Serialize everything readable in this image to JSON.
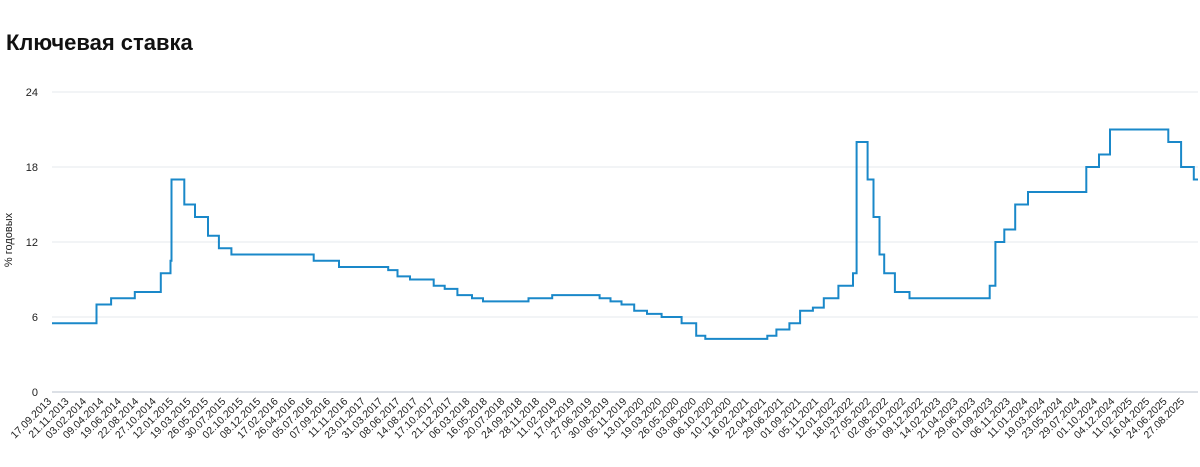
{
  "title": "Ключевая ставка",
  "chart_data": {
    "type": "line",
    "title": "Ключевая ставка",
    "xlabel": "",
    "ylabel": "% годовых",
    "ylim": [
      0,
      24
    ],
    "yticks": [
      "0",
      "6",
      "12",
      "18",
      "24"
    ],
    "grid": true,
    "line_color": "#1a88c9",
    "xticks": [
      "17.09.2013",
      "21.11.2013",
      "03.02.2014",
      "09.04.2014",
      "19.06.2014",
      "22.08.2014",
      "27.10.2014",
      "12.01.2015",
      "19.03.2015",
      "26.05.2015",
      "30.07.2015",
      "02.10.2015",
      "08.12.2015",
      "17.02.2016",
      "26.04.2016",
      "05.07.2016",
      "07.09.2016",
      "11.11.2016",
      "23.01.2017",
      "31.03.2017",
      "08.06.2017",
      "14.08.2017",
      "17.10.2017",
      "21.12.2017",
      "06.03.2018",
      "16.05.2018",
      "20.07.2018",
      "24.09.2018",
      "28.11.2018",
      "11.02.2019",
      "17.04.2019",
      "27.06.2019",
      "30.08.2019",
      "05.11.2019",
      "13.01.2020",
      "19.03.2020",
      "26.05.2020",
      "03.08.2020",
      "06.10.2020",
      "10.12.2020",
      "16.02.2021",
      "22.04.2021",
      "29.06.2021",
      "01.09.2021",
      "05.11.2021",
      "12.01.2022",
      "18.03.2022",
      "27.05.2022",
      "02.08.2022",
      "05.10.2022",
      "09.12.2022",
      "14.02.2023",
      "21.04.2023",
      "29.06.2023",
      "01.09.2023",
      "06.11.2023",
      "11.01.2024",
      "19.03.2024",
      "23.05.2024",
      "29.07.2024",
      "01.10.2024",
      "04.12.2024",
      "11.02.2025",
      "16.04.2025",
      "24.06.2025",
      "27.08.2025"
    ],
    "series": [
      {
        "x": [
          "2013-09-13",
          "2014-03-03",
          "2014-04-28",
          "2014-07-28",
          "2014-11-05",
          "2014-12-12",
          "2014-12-16",
          "2015-02-03",
          "2015-03-16",
          "2015-05-05",
          "2015-06-16",
          "2015-08-03",
          "2016-06-14",
          "2016-09-19",
          "2017-03-27",
          "2017-05-02",
          "2017-06-19",
          "2017-09-18",
          "2017-10-30",
          "2017-12-18",
          "2018-02-12",
          "2018-03-26",
          "2018-09-17",
          "2018-12-17",
          "2019-06-17",
          "2019-07-29",
          "2019-09-09",
          "2019-10-28",
          "2019-12-16",
          "2020-02-10",
          "2020-04-27",
          "2020-06-22",
          "2020-07-27",
          "2021-03-22",
          "2021-04-26",
          "2021-06-15",
          "2021-07-26",
          "2021-09-13",
          "2021-10-25",
          "2021-12-20",
          "2022-02-14",
          "2022-02-28",
          "2022-04-11",
          "2022-05-04",
          "2022-05-27",
          "2022-06-14",
          "2022-07-25",
          "2022-09-19",
          "2023-07-24",
          "2023-08-15",
          "2023-09-18",
          "2023-10-30",
          "2023-12-18",
          "2024-07-29",
          "2024-09-16",
          "2024-10-28",
          "2025-06-09",
          "2025-07-28",
          "2025-09-15",
          "2025-10-01"
        ],
        "values": [
          5.5,
          7,
          7.5,
          8,
          9.5,
          10.5,
          17,
          15,
          14,
          12.5,
          11.5,
          11,
          10.5,
          10,
          9.75,
          9.25,
          9,
          8.5,
          8.25,
          7.75,
          7.5,
          7.25,
          7.5,
          7.75,
          7.5,
          7.25,
          7,
          6.5,
          6.25,
          6,
          5.5,
          4.5,
          4.25,
          4.5,
          5,
          5.5,
          6.5,
          6.75,
          7.5,
          8.5,
          9.5,
          20,
          17,
          14,
          11,
          9.5,
          8,
          7.5,
          8.5,
          12,
          13,
          15,
          16,
          18,
          19,
          21,
          20,
          18,
          17,
          17
        ]
      }
    ]
  }
}
